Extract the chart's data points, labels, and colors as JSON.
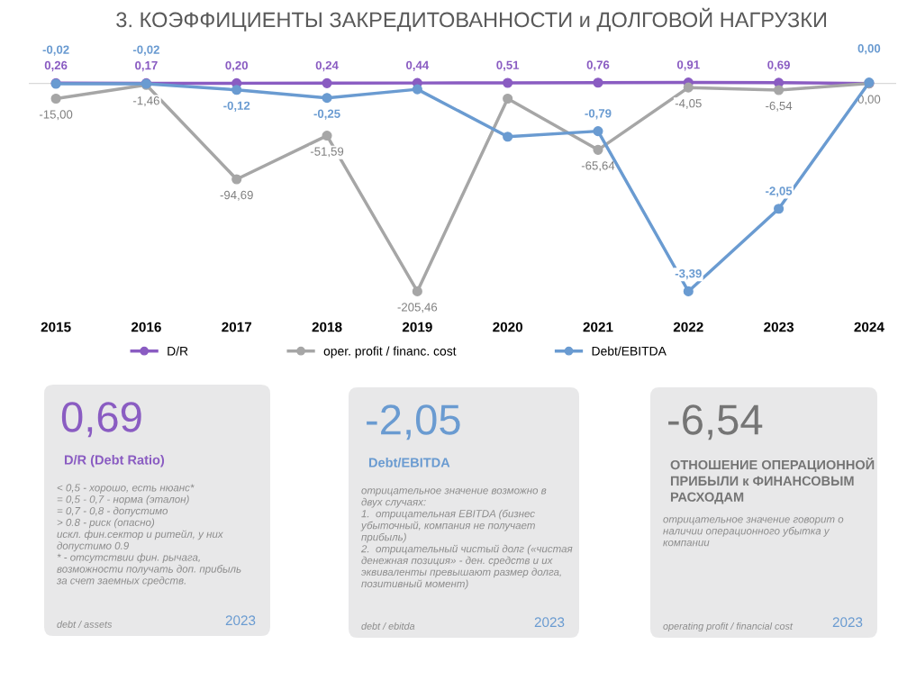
{
  "chart_data": [
    {
      "type": "line",
      "title": "3. КОЭФФИЦИЕНТЫ ЗАКРЕДИТОВАННОСТИ и ДОЛГОВОЙ НАГРУЗКИ",
      "categories": [
        "2015",
        "2016",
        "2017",
        "2018",
        "2019",
        "2020",
        "2021",
        "2022",
        "2023",
        "2024"
      ],
      "series": [
        {
          "name": "D/R",
          "color": "#8a5cc2",
          "values": [
            0.26,
            0.17,
            0.2,
            0.24,
            0.44,
            0.51,
            0.76,
            0.91,
            0.69,
            0.0
          ],
          "value_labels": [
            "0,26",
            "0,17",
            "0,20",
            "0,24",
            "0,44",
            "0,51",
            "0,76",
            "0,91",
            "0,69",
            null
          ]
        },
        {
          "name": "oper. profit / financ. cost",
          "color": "#a6a6a6",
          "values": [
            -15.0,
            -1.46,
            -94.69,
            -51.59,
            -205.46,
            -15,
            -65.64,
            -4.05,
            -6.54,
            0.0
          ],
          "value_labels": [
            "-15,00",
            "-1,46",
            "-94,69",
            "-51,59",
            "-205,46",
            null,
            "-65,64",
            "-4,05",
            "-6,54",
            "0,00"
          ]
        },
        {
          "name": "Debt/EBITDA",
          "color": "#6a9bd1",
          "axis": "y2",
          "values": [
            -0.02,
            -0.02,
            -0.12,
            -0.25,
            -0.11,
            -0.88,
            -0.79,
            -3.39,
            -2.05,
            0.0
          ],
          "value_labels": [
            "-0,02",
            "-0,02",
            "-0,12",
            "-0,25",
            null,
            null,
            "-0,79",
            "-3,39",
            "-2,05",
            "0,00"
          ]
        }
      ],
      "tick_labels": "x",
      "marker": "circle",
      "line_style": "solid",
      "grid": false,
      "legend": "bottom",
      "ref_lines": [
        {
          "axis": "y",
          "value": 0,
          "color": "#d9d9d9"
        }
      ]
    },
    {
      "type": "other",
      "title": "0,69",
      "subtitle": "D/R (Debt Ratio)",
      "annotations": [
        "< 0,5 - хорошо, есть нюанс*\n= 0,5 - 0,7 - норма (эталон)\n= 0,7 - 0,8 - допустимо\n> 0.8 - риск (опасно)\nискл. фин.сектор и ритейл, у них\nдопустимо 0.9\n* - отсутствии фин. рычага,\nвозможности получать доп. прибыль\nза счет заемных средств.",
        "debt / assets",
        "2023"
      ]
    },
    {
      "type": "other",
      "title": "-2,05",
      "subtitle": "Debt/EBITDA",
      "annotations": [
        "отрицательное значение возможно в\nдвух случаях:\n1.  отрицательная EBITDA (бизнес\nубыточный, компания не получает\nприбыль)\n2.  отрицательный чистый долг («чистая\nденежная позиция» - ден. средств и их\nэквиваленты превышают размер долга,\nпозитивный момент)",
        "debt / ebitda",
        "2023"
      ]
    },
    {
      "type": "other",
      "title": "-6,54",
      "subtitle": "ОТНОШЕНИЕ ОПЕРАЦИОННОЙ\nПРИБЫЛИ к ФИНАНСОВЫМ\nРАСХОДАМ",
      "annotations": [
        "отрицательное значение говорит о\nналичии операционного убытка у\nкомпании",
        "operating profit / financial cost",
        "2023"
      ]
    }
  ]
}
